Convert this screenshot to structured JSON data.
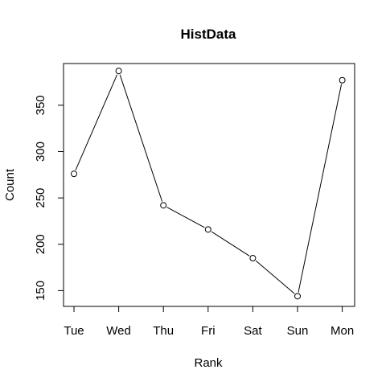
{
  "chart_data": {
    "type": "line",
    "title": "HistData",
    "xlabel": "Rank",
    "ylabel": "Count",
    "categories": [
      "Tue",
      "Wed",
      "Thu",
      "Fri",
      "Sat",
      "Sun",
      "Mon"
    ],
    "values": [
      276,
      387,
      242,
      216,
      185,
      144,
      377
    ],
    "yticks": [
      150,
      200,
      250,
      300,
      350
    ],
    "ylim": [
      133,
      395
    ],
    "grid": false,
    "markers": "open-circle",
    "colors": {
      "line": "#000000",
      "marker": "#000000"
    }
  }
}
